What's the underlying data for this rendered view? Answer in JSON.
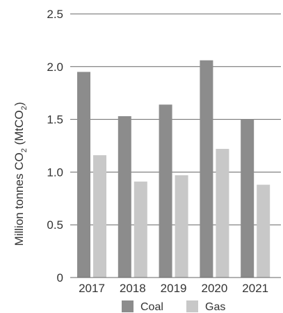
{
  "chart_data": {
    "type": "bar",
    "categories": [
      "2017",
      "2018",
      "2019",
      "2020",
      "2021"
    ],
    "series": [
      {
        "name": "Coal",
        "values": [
          1.95,
          1.53,
          1.64,
          2.06,
          1.5
        ],
        "color": "#8c8c8c"
      },
      {
        "name": "Gas",
        "values": [
          1.16,
          0.91,
          0.97,
          1.22,
          0.88
        ],
        "color": "#c8c8c8"
      }
    ],
    "ylabel": "Million tonnes CO2 (MtCO2)",
    "ylabel_parts": {
      "pre": "Million tonnes CO",
      "sub1": "2",
      "mid": " (MtCO",
      "sub2": "2",
      "post": ")"
    },
    "ylim": [
      0,
      2.5
    ],
    "yticks": [
      "0",
      "0.5",
      "1.0",
      "1.5",
      "2.0",
      "2.5"
    ],
    "grid": true,
    "legend_position": "bottom",
    "axis_color": "#666666"
  }
}
